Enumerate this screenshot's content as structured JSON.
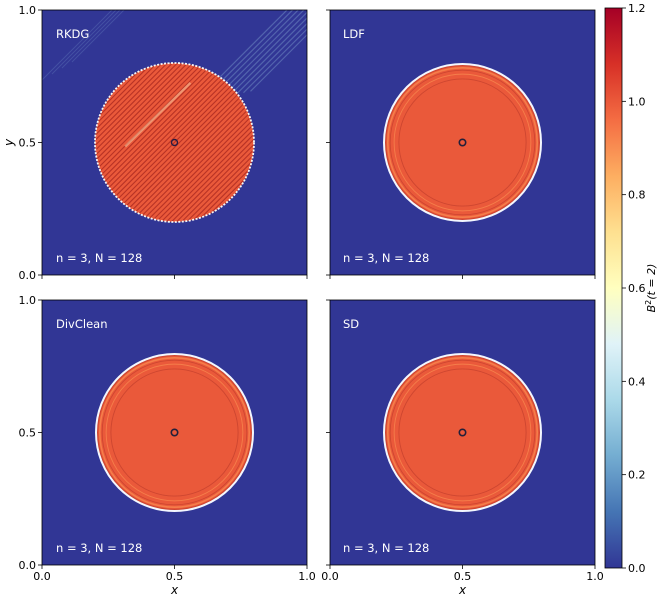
{
  "chart_data": {
    "type": "heatmap",
    "colorbar": {
      "label": "B²(t = 2)",
      "label_base": "B",
      "label_sup": "2",
      "label_rest": "(t = 2)",
      "range": [
        0.0,
        1.2
      ],
      "ticks": [
        "0.0",
        "0.2",
        "0.4",
        "0.6",
        "0.8",
        "1.0",
        "1.2"
      ],
      "colormap": "RdYlBu_r",
      "stops": [
        "#313695",
        "#4575b4",
        "#74add1",
        "#abd9e9",
        "#e0f3f8",
        "#ffffbf",
        "#fee090",
        "#fdae61",
        "#f46d43",
        "#d73027",
        "#a50026"
      ]
    },
    "axes": {
      "xlabel": "x",
      "ylabel": "y",
      "xlim": [
        0.0,
        1.0
      ],
      "ylim": [
        0.0,
        1.0
      ],
      "xticks": [
        "0.0",
        "0.5",
        "1.0"
      ],
      "yticks": [
        "0.0",
        "0.5",
        "1.0"
      ]
    },
    "panels": [
      {
        "title": "RKDG",
        "note": "n = 3, N = 128",
        "background_value": 0.0,
        "disk_value": 1.0,
        "disk_center": [
          0.5,
          0.5
        ],
        "disk_radius": 0.3
      },
      {
        "title": "LDF",
        "note": "n = 3, N = 128",
        "background_value": 0.0,
        "disk_value": 1.0,
        "disk_center": [
          0.5,
          0.5
        ],
        "disk_radius": 0.3
      },
      {
        "title": "DivClean",
        "note": "n = 3, N = 128",
        "background_value": 0.0,
        "disk_value": 1.0,
        "disk_center": [
          0.5,
          0.5
        ],
        "disk_radius": 0.3
      },
      {
        "title": "SD",
        "note": "n = 3, N = 128",
        "background_value": 0.0,
        "disk_value": 1.0,
        "disk_center": [
          0.5,
          0.5
        ],
        "disk_radius": 0.3
      }
    ]
  }
}
